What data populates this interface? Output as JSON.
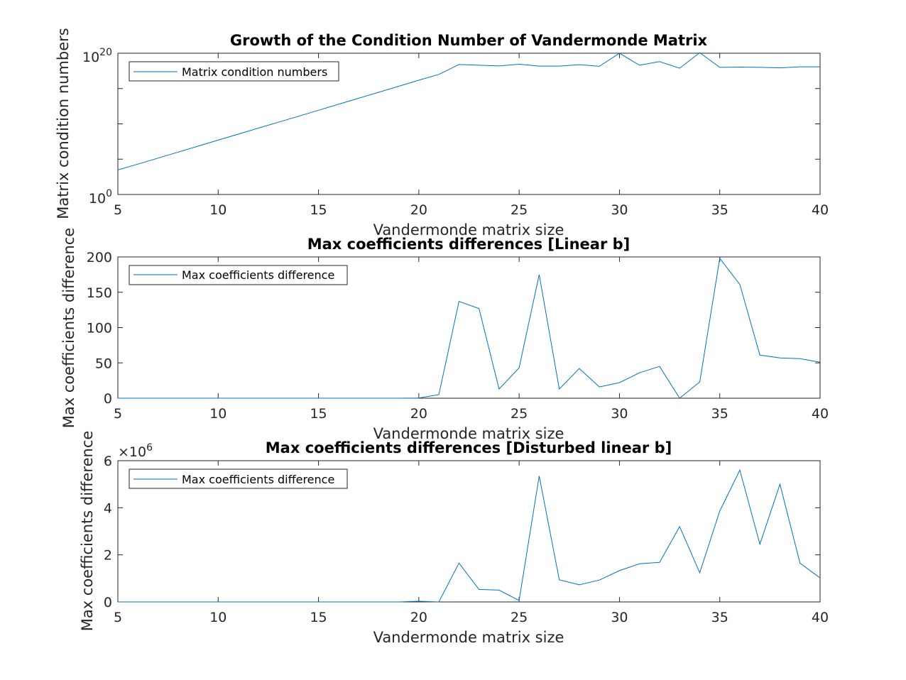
{
  "colors": {
    "line": "#0072BD",
    "axis": "#262626",
    "background": "#ffffff"
  },
  "chart_data": [
    {
      "type": "line",
      "title": "Growth of the Condition Number of Vandermonde Matrix",
      "xlabel": "Vandermonde matrix size",
      "ylabel": "Matrix condition numbers",
      "xlim": [
        5,
        40
      ],
      "ylim": [
        1,
        1e+20
      ],
      "yscale": "log",
      "xticks": [
        5,
        10,
        15,
        20,
        25,
        30,
        35,
        40
      ],
      "xtick_labels": [
        "5",
        "10",
        "15",
        "20",
        "25",
        "30",
        "35",
        "40"
      ],
      "yticks_major": [
        {
          "base": "10",
          "exp": "0",
          "value": 1
        },
        {
          "base": "10",
          "exp": "20",
          "value": 1e+20
        }
      ],
      "legend": {
        "location": "top-left",
        "entries": [
          "Matrix condition numbers"
        ]
      },
      "series": [
        {
          "name": "Matrix condition numbers",
          "x": [
            5,
            6,
            7,
            8,
            9,
            10,
            11,
            12,
            13,
            14,
            15,
            16,
            17,
            18,
            19,
            20,
            21,
            22,
            23,
            24,
            25,
            26,
            27,
            28,
            29,
            30,
            31,
            32,
            33,
            34,
            35,
            36,
            37,
            38,
            39,
            40
          ],
          "y": [
            3000.0,
            20000.0,
            140000.0,
            1000000.0,
            7000000.0,
            50000000.0,
            350000000.0,
            2500000000.0,
            17000000000.0,
            120000000000.0,
            850000000000.0,
            6000000000000.0,
            42000000000000.0,
            300000000000000.0,
            2100000000000000.0,
            1.5e+16,
            1e+17,
            2.5e+18,
            2e+18,
            1.6e+18,
            2.8e+18,
            1.5e+18,
            1.5e+18,
            2.4e+18,
            1.4e+18,
            1e+20,
            2e+18,
            6.5e+18,
            7.5e+17,
            1.2e+20,
            1e+18,
            1.1e+18,
            1e+18,
            8.5e+17,
            1.2e+18,
            1.2e+18
          ]
        }
      ]
    },
    {
      "type": "line",
      "title": "Max coefficients differences [Linear b]",
      "xlabel": "Vandermonde matrix size",
      "ylabel": "Max coefficients difference",
      "xlim": [
        5,
        40
      ],
      "ylim": [
        0,
        200
      ],
      "xticks": [
        5,
        10,
        15,
        20,
        25,
        30,
        35,
        40
      ],
      "xtick_labels": [
        "5",
        "10",
        "15",
        "20",
        "25",
        "30",
        "35",
        "40"
      ],
      "yticks": [
        0,
        50,
        100,
        150,
        200
      ],
      "ytick_labels": [
        "0",
        "50",
        "100",
        "150",
        "200"
      ],
      "legend": {
        "location": "top-left",
        "entries": [
          "Max coefficients difference"
        ]
      },
      "series": [
        {
          "name": "Max coefficients difference",
          "x": [
            5,
            6,
            7,
            8,
            9,
            10,
            11,
            12,
            13,
            14,
            15,
            16,
            17,
            18,
            19,
            20,
            21,
            22,
            23,
            24,
            25,
            26,
            27,
            28,
            29,
            30,
            31,
            32,
            33,
            34,
            35,
            36,
            37,
            38,
            39,
            40
          ],
          "y": [
            0,
            0,
            0,
            0,
            0,
            0,
            0,
            0,
            0,
            0,
            0,
            0,
            0,
            0,
            0,
            0.3,
            5,
            137,
            127,
            13,
            43,
            175,
            13,
            42,
            16,
            22,
            36,
            45,
            0,
            23,
            198,
            161,
            61,
            57,
            56,
            51
          ]
        }
      ]
    },
    {
      "type": "line",
      "title": "Max coefficients differences [Disturbed linear b]",
      "xlabel": "Vandermonde matrix size",
      "ylabel": "Max coefficients difference",
      "xlim": [
        5,
        40
      ],
      "ylim": [
        0,
        6000000
      ],
      "xticks": [
        5,
        10,
        15,
        20,
        25,
        30,
        35,
        40
      ],
      "xtick_labels": [
        "5",
        "10",
        "15",
        "20",
        "25",
        "30",
        "35",
        "40"
      ],
      "yticks": [
        0,
        2000000,
        4000000,
        6000000
      ],
      "ytick_labels": [
        "0",
        "2",
        "4",
        "6"
      ],
      "exponent_label": {
        "prefix": "×10",
        "exp": "6"
      },
      "legend": {
        "location": "top-left",
        "entries": [
          "Max coefficients difference"
        ]
      },
      "series": [
        {
          "name": "Max coefficients difference",
          "x": [
            5,
            6,
            7,
            8,
            9,
            10,
            11,
            12,
            13,
            14,
            15,
            16,
            17,
            18,
            19,
            20,
            21,
            22,
            23,
            24,
            25,
            26,
            27,
            28,
            29,
            30,
            31,
            32,
            33,
            34,
            35,
            36,
            37,
            38,
            39,
            40
          ],
          "y": [
            0,
            0,
            0,
            0,
            0,
            0,
            0,
            0,
            0,
            0,
            0,
            0,
            0,
            0,
            0,
            30000,
            0,
            1650000,
            530000,
            500000,
            60000,
            5350000,
            940000,
            730000,
            930000,
            1330000,
            1620000,
            1680000,
            3200000,
            1240000,
            3860000,
            5600000,
            2450000,
            5000000,
            1650000,
            1020000
          ]
        }
      ]
    }
  ]
}
